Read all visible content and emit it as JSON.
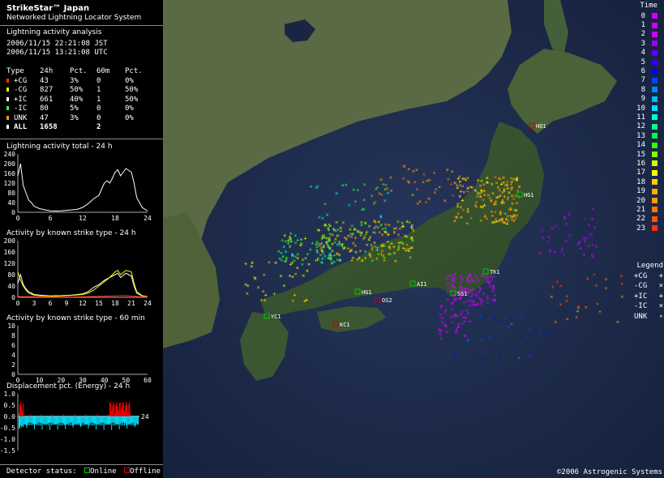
{
  "title": "StrikeStar™ Japan",
  "subtitle": "Networked Lightning Locator System",
  "analysis": {
    "label": "Lightning activity analysis",
    "time_jst": "2006/11/15  22:21:08 JST",
    "time_utc": "2006/11/15  13:21:08 UTC"
  },
  "table": {
    "headers": [
      "Type",
      "24h",
      "Pct.",
      "60m",
      "Pct."
    ],
    "rows": [
      {
        "type": "+CG",
        "h24": "43",
        "pct24": "3%",
        "m60": "0",
        "pct60": "0%",
        "color": "#ff3300"
      },
      {
        "type": "-CG",
        "h24": "827",
        "pct24": "50%",
        "m60": "1",
        "pct60": "50%",
        "color": "#ffff00"
      },
      {
        "type": "+IC",
        "h24": "661",
        "pct24": "40%",
        "m60": "1",
        "pct60": "50%",
        "color": "#ffffff"
      },
      {
        "type": "-IC",
        "h24": "80",
        "pct24": "5%",
        "m60": "0",
        "pct60": "0%",
        "color": "#33ff33"
      },
      {
        "type": "UNK",
        "h24": "47",
        "pct24": "3%",
        "m60": "0",
        "pct60": "0%",
        "color": "#ff9900"
      },
      {
        "type": "ALL",
        "h24": "1658",
        "pct24": "",
        "m60": "2",
        "pct60": "",
        "color": "#ffffff"
      }
    ]
  },
  "charts_titles": {
    "total": "Lightning activity total - 24 h",
    "bytype24": "Activity by known strike type - 24 h",
    "bytype60": "Activity by known strike type - 60 min",
    "displacement": "Displacement pct. (Energy) - 24 h"
  },
  "chart_data": [
    {
      "type": "line",
      "title": "Lightning activity total - 24 h",
      "x_ticks": [
        "0",
        "6",
        "12",
        "18",
        "24"
      ],
      "y_ticks": [
        "240",
        "200",
        "160",
        "120",
        "80",
        "40",
        "0"
      ],
      "ylim": [
        0,
        240
      ],
      "xlim": [
        0,
        24
      ],
      "series": [
        {
          "color": "#ffffff",
          "x": [
            0,
            0.5,
            1,
            1.5,
            2,
            2.5,
            3,
            4,
            5,
            6,
            7,
            8,
            9,
            10,
            11,
            12,
            13,
            14,
            15,
            15.5,
            16,
            16.5,
            17,
            17.5,
            18,
            18.5,
            19,
            20,
            21,
            21.5,
            22,
            23,
            24
          ],
          "values": [
            150,
            200,
            110,
            80,
            50,
            40,
            25,
            15,
            10,
            6,
            5,
            6,
            8,
            10,
            12,
            20,
            35,
            55,
            70,
            95,
            120,
            130,
            120,
            140,
            165,
            175,
            150,
            180,
            165,
            120,
            60,
            20,
            5
          ]
        }
      ]
    },
    {
      "type": "line",
      "title": "Activity by known strike type - 24 h",
      "x_ticks": [
        "0",
        "3",
        "6",
        "9",
        "12",
        "15",
        "18",
        "21",
        "24"
      ],
      "y_ticks": [
        "200",
        "160",
        "120",
        "80",
        "40",
        "0"
      ],
      "ylim": [
        0,
        200
      ],
      "xlim": [
        0,
        24
      ],
      "series": [
        {
          "color": "#ffffff",
          "x": [
            0,
            0.5,
            1,
            1.5,
            2,
            3,
            4,
            6,
            8,
            10,
            12,
            13,
            14,
            15,
            16,
            17,
            18,
            18.5,
            19,
            20,
            21,
            21.5,
            22,
            23,
            24
          ],
          "values": [
            50,
            80,
            45,
            30,
            20,
            10,
            8,
            5,
            6,
            8,
            12,
            20,
            35,
            45,
            60,
            70,
            80,
            85,
            70,
            85,
            75,
            40,
            15,
            5,
            2
          ]
        },
        {
          "color": "#ffff00",
          "x": [
            0,
            0.5,
            1,
            1.5,
            2,
            3,
            4,
            6,
            8,
            10,
            12,
            13,
            14,
            15,
            16,
            17,
            18,
            18.5,
            19,
            20,
            21,
            21.5,
            22,
            23,
            24
          ],
          "values": [
            90,
            60,
            40,
            25,
            15,
            8,
            6,
            4,
            5,
            7,
            10,
            15,
            25,
            40,
            55,
            70,
            90,
            95,
            80,
            95,
            90,
            50,
            20,
            6,
            2
          ]
        },
        {
          "color": "#ff3300",
          "x": [
            0,
            4,
            8,
            12,
            16,
            18,
            20,
            22,
            24
          ],
          "values": [
            3,
            2,
            1,
            2,
            4,
            5,
            6,
            3,
            1
          ]
        }
      ]
    },
    {
      "type": "line",
      "title": "Activity by known strike type - 60 min",
      "x_ticks": [
        "0",
        "10",
        "20",
        "30",
        "40",
        "50",
        "60"
      ],
      "y_ticks": [
        "10",
        "8",
        "6",
        "4",
        "2",
        "0"
      ],
      "ylim": [
        0,
        10
      ],
      "xlim": [
        0,
        60
      ],
      "series": []
    },
    {
      "type": "bar",
      "title": "Displacement pct. (Energy) - 24 h",
      "y_ticks": [
        "1.0",
        "0.5",
        "0.0",
        "-0.5",
        "-1.0",
        "-1.5"
      ],
      "x_ticks": [
        "24"
      ],
      "ylim": [
        -1.5,
        1.0
      ],
      "xlim": [
        0,
        24
      ],
      "series": [
        {
          "name": "positive",
          "color": "#ff0000"
        },
        {
          "name": "negative",
          "color": "#00e5ff"
        }
      ]
    }
  ],
  "detector_status": {
    "label": "Detector status:",
    "online": "Online",
    "offline": "Offline",
    "arrow": "--->",
    "online_color": "#00cc00",
    "offline_color": "#cc0000"
  },
  "map": {
    "copyright": "©2006 Astrogenic Systems",
    "stations": [
      {
        "code": "HO1",
        "status": "offline"
      },
      {
        "code": "HG1",
        "status": "online"
      },
      {
        "code": "TK1",
        "status": "online"
      },
      {
        "code": "AI1",
        "status": "online"
      },
      {
        "code": "SS1",
        "status": "online"
      },
      {
        "code": "OS2",
        "status": "offline"
      },
      {
        "code": "HG1",
        "status": "online"
      },
      {
        "code": "YC1",
        "status": "online"
      },
      {
        "code": "KC1",
        "status": "offline"
      }
    ]
  },
  "time_legend": {
    "title": "Time",
    "entries": [
      {
        "label": "0",
        "color": "#cc00ff"
      },
      {
        "label": "1",
        "color": "#cc00ff"
      },
      {
        "label": "2",
        "color": "#cc00ff"
      },
      {
        "label": "3",
        "color": "#9900ff"
      },
      {
        "label": "4",
        "color": "#6600ff"
      },
      {
        "label": "5",
        "color": "#3300ff"
      },
      {
        "label": "6",
        "color": "#0000ff"
      },
      {
        "label": "7",
        "color": "#0044ff"
      },
      {
        "label": "8",
        "color": "#0088ff"
      },
      {
        "label": "9",
        "color": "#00bbff"
      },
      {
        "label": "10",
        "color": "#00ddff"
      },
      {
        "label": "11",
        "color": "#00ffcc"
      },
      {
        "label": "12",
        "color": "#00ff88"
      },
      {
        "label": "13",
        "color": "#00ff44"
      },
      {
        "label": "14",
        "color": "#33ff00"
      },
      {
        "label": "15",
        "color": "#88ff00"
      },
      {
        "label": "16",
        "color": "#ccff00"
      },
      {
        "label": "17",
        "color": "#ffff00"
      },
      {
        "label": "18",
        "color": "#ffcc00"
      },
      {
        "label": "19",
        "color": "#ffaa00"
      },
      {
        "label": "20",
        "color": "#ff9900"
      },
      {
        "label": "21",
        "color": "#ff7700"
      },
      {
        "label": "22",
        "color": "#ff5500"
      },
      {
        "label": "23",
        "color": "#ff3300"
      }
    ]
  },
  "type_legend": {
    "title": "Legend",
    "entries": [
      {
        "label": "+CG",
        "symbol": "+"
      },
      {
        "label": "-CG",
        "symbol": "×"
      },
      {
        "label": "+IC",
        "symbol": "+"
      },
      {
        "label": "-IC",
        "symbol": "×"
      },
      {
        "label": "UNK",
        "symbol": "∘"
      }
    ]
  }
}
